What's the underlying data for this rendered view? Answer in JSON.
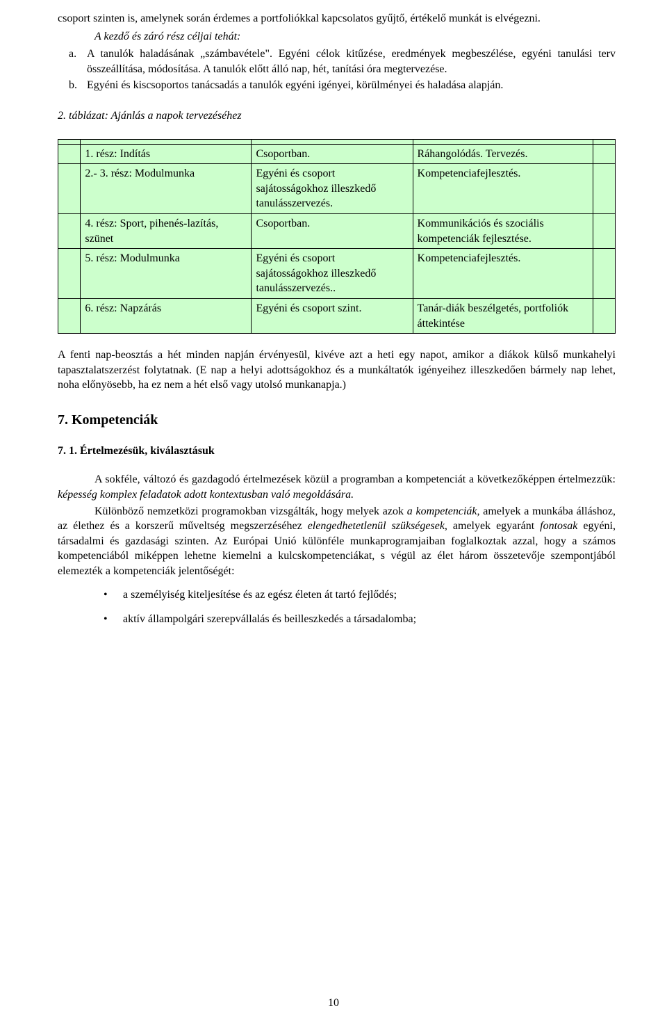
{
  "colors": {
    "table_bg": "#ccffcc",
    "border": "#000000",
    "page_bg": "#ffffff",
    "text": "#000000"
  },
  "intro": {
    "line1": "csoport szinten is, amelynek során érdemes a portfoliókkal kapcsolatos gyűjtő, értékelő munkát is elvégezni.",
    "line2_em": "A kezdő és záró rész céljai tehát:",
    "items": [
      {
        "marker": "a.",
        "text": "A tanulók haladásának „számbavétele\". Egyéni célok kitűzése, eredmények megbeszélése, egyéni tanulási terv összeállítása, módosítása. A tanulók előtt álló nap, hét, tanítási óra megtervezése."
      },
      {
        "marker": "b.",
        "text": "Egyéni és kiscsoportos tanácsadás a tanulók egyéni igényei, körülményei és haladása alapján."
      }
    ]
  },
  "table_caption": "2. táblázat: Ajánlás a napok tervezéséhez",
  "table": [
    {
      "c1": "1. rész: Indítás",
      "c2": "Csoportban.",
      "c3": "Ráhangolódás. Tervezés."
    },
    {
      "c1": "2.- 3. rész: Modulmunka",
      "c2": "Egyéni és csoport sajátosságokhoz illeszkedő tanulásszervezés.",
      "c3": "Kompetenciafejlesztés."
    },
    {
      "c1": "4. rész: Sport, pihenés-lazítás, szünet",
      "c2": "Csoportban.",
      "c3": "Kommunikációs és szociális kompetenciák fejlesztése."
    },
    {
      "c1": "5. rész: Modulmunka",
      "c2": "Egyéni és csoport sajátosságokhoz illeszkedő tanulásszervezés..",
      "c3": "Kompetenciafejlesztés."
    },
    {
      "c1": "6. rész: Napzárás",
      "c2": "Egyéni és csoport szint.",
      "c3": "Tanár-diák beszélgetés, portfoliók áttekintése"
    }
  ],
  "after_table": "A fenti nap-beosztás a hét minden napján érvényesül, kivéve azt a heti egy napot, amikor a diákok külső munkahelyi tapasztalatszerzést folytatnak. (E nap a helyi adottságokhoz és a munkáltatók igényeihez illeszkedően bármely nap lehet, noha előnyösebb, ha ez nem a hét első vagy utolsó munkanapja.)",
  "section_heading": "7. Kompetenciák",
  "subsection_heading": "7. 1. Értelmezésük, kiválasztásuk",
  "body": {
    "p1_pre": "A sokféle, változó és gazdagodó értelmezések közül a programban a kompetenciát a következőképpen értelmezzük: ",
    "p1_em": "képesség komplex feladatok adott kontextusban való megoldására.",
    "p2_a": "Különböző nemzetközi programokban vizsgálták, hogy melyek azok ",
    "p2_em1": "a kompetenciák,",
    "p2_b": " amelyek a munkába álláshoz, az élethez és a korszerű műveltség megszerzéséhez ",
    "p2_em2": "elengedhetetlenül szükségesek",
    "p2_c": ", amelyek egyaránt ",
    "p2_em3": "fontosak",
    "p2_d": " egyéni, társadalmi és gazdasági szinten. Az Európai Unió különféle munkaprogramjaiban foglalkoztak azzal, hogy a számos kompetenciából miképpen lehetne kiemelni a kulcskompetenciákat, s végül az élet három összetevője szempontjából elemezték a kompetenciák jelentőségét:"
  },
  "bullets": [
    "a személyiség kiteljesítése és az egész életen át tartó fejlődés;",
    "aktív állampolgári szerepvállalás és beilleszkedés a társadalomba;"
  ],
  "page_number": "10"
}
